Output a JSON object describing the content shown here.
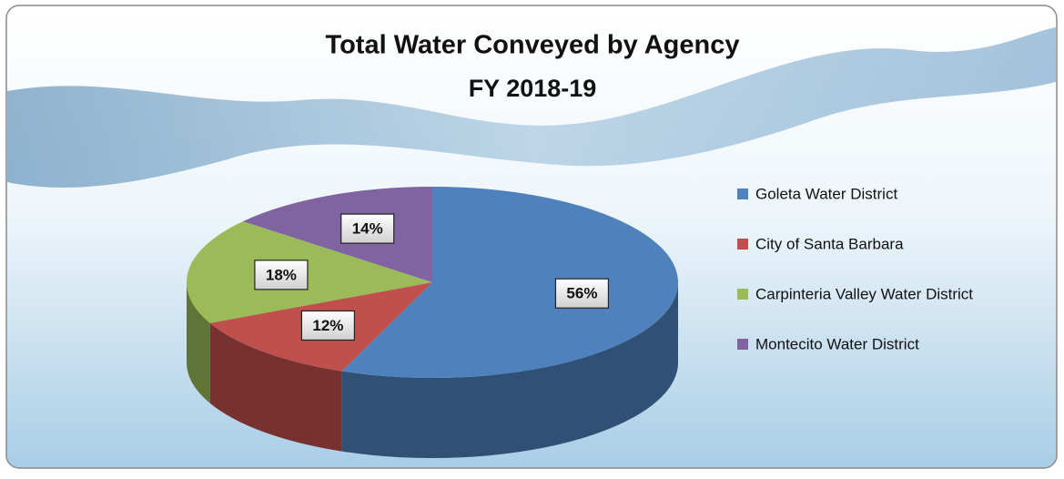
{
  "chart_data": {
    "type": "pie3d",
    "title": "Total Water Conveyed by Agency",
    "subtitle": "FY 2018-19",
    "categories": [
      "Goleta Water District",
      "City of Santa Barbara",
      "Carpinteria Valley Water District",
      "Montecito Water District"
    ],
    "values": [
      56,
      12,
      18,
      14
    ],
    "value_labels": [
      "56%",
      "12%",
      "18%",
      "14%"
    ],
    "colors": [
      "#4f81bd",
      "#c0504d",
      "#9bbb59",
      "#8064a2"
    ],
    "legend": "right"
  }
}
